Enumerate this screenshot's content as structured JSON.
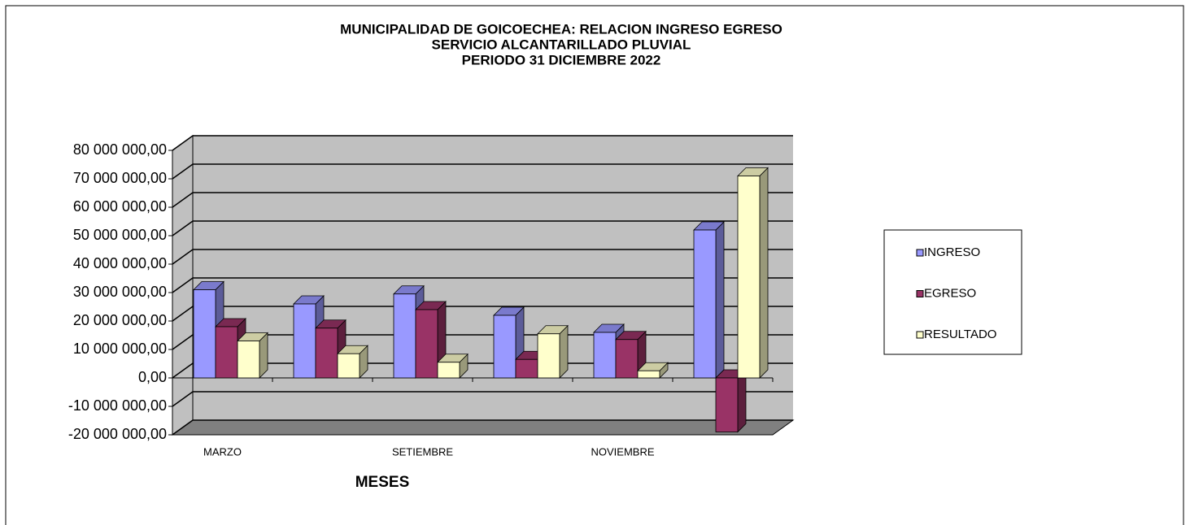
{
  "chart_data": {
    "type": "bar3d",
    "title": [
      "MUNICIPALIDAD DE GOICOECHEA:  RELACION INGRESO EGRESO",
      "SERVICIO ALCANTARILLADO PLUVIAL",
      "PERIODO 31 DICIEMBRE 2022"
    ],
    "x_label": "MESES",
    "categories": [
      "MARZO",
      null,
      "SETIEMBRE",
      null,
      "NOVIEMBRE",
      null
    ],
    "series": [
      {
        "name": "INGRESO",
        "color": "#9999ff",
        "values": [
          31000000,
          26000000,
          29500000,
          22000000,
          16000000,
          52000000
        ]
      },
      {
        "name": "EGRESO",
        "color": "#993366",
        "values": [
          18000000,
          17500000,
          24000000,
          6500000,
          13500000,
          -19000000
        ]
      },
      {
        "name": "RESULTADO",
        "color": "#ffffcc",
        "values": [
          13000000,
          8500000,
          5500000,
          15500000,
          2500000,
          71000000
        ]
      }
    ],
    "ylim": [
      -20000000,
      80000000
    ],
    "yticks": [
      {
        "value": -20000000,
        "label": "-20 000 000,00"
      },
      {
        "value": -10000000,
        "label": "-10 000 000,00"
      },
      {
        "value": 0,
        "label": "0,00"
      },
      {
        "value": 10000000,
        "label": "10 000 000,00"
      },
      {
        "value": 20000000,
        "label": "20 000 000,00"
      },
      {
        "value": 30000000,
        "label": "30 000 000,00"
      },
      {
        "value": 40000000,
        "label": "40 000 000,00"
      },
      {
        "value": 50000000,
        "label": "50 000 000,00"
      },
      {
        "value": 60000000,
        "label": "60 000 000,00"
      },
      {
        "value": 70000000,
        "label": "70 000 000,00"
      },
      {
        "value": 80000000,
        "label": "80 000 000,00"
      }
    ],
    "grid": true,
    "legend": "right"
  }
}
